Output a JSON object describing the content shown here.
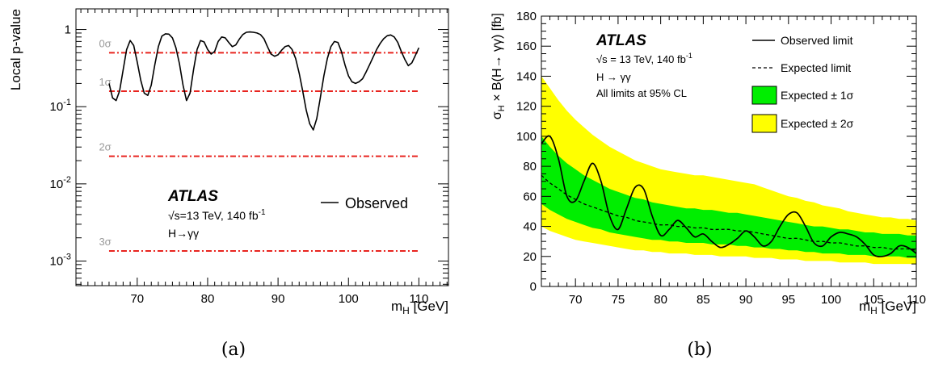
{
  "chart_data": [
    {
      "type": "line",
      "panel_label": "(a)",
      "ylabel": "Local p-value",
      "xlabel": "m",
      "xlabel_sub": "H",
      "xlabel_unit": " [GeV]",
      "xlim": [
        61.3,
        114.2
      ],
      "ylim": [
        0.00048,
        1.85
      ],
      "y_scale": "log",
      "grid": false,
      "x_ticks": [
        70,
        80,
        90,
        100,
        110
      ],
      "y_ticks": [
        {
          "value": 1,
          "base": "1",
          "exp": ""
        },
        {
          "value": 0.1,
          "base": "10",
          "exp": "-1"
        },
        {
          "value": 0.01,
          "base": "10",
          "exp": "-2"
        },
        {
          "value": 0.001,
          "base": "10",
          "exp": "-3"
        }
      ],
      "reference_lines": [
        {
          "label": "0σ",
          "value": 0.5
        },
        {
          "label": "1σ",
          "value": 0.159
        },
        {
          "label": "2σ",
          "value": 0.0228
        },
        {
          "label": "3σ",
          "value": 0.00135
        }
      ],
      "atlas_label": "ATLAS",
      "info_lines": [
        "√s=13 TeV, 140 fb",
        "H→γγ"
      ],
      "info_sup": "-1",
      "legend": {
        "placement": "middle-right",
        "entries": [
          "Observed"
        ]
      },
      "series": [
        {
          "name": "Observed",
          "x": [
            66,
            66.5,
            67,
            67.5,
            68,
            68.5,
            69,
            69.5,
            70,
            70.5,
            71,
            71.5,
            72,
            72.5,
            73,
            73.5,
            74,
            74.5,
            75,
            75.5,
            76,
            76.5,
            77,
            77.5,
            78,
            78.5,
            79,
            79.5,
            80,
            80.5,
            81,
            81.5,
            82,
            82.5,
            83,
            83.5,
            84,
            84.5,
            85,
            85.5,
            86,
            86.5,
            87,
            87.5,
            88,
            88.5,
            89,
            89.5,
            90,
            90.5,
            91,
            91.5,
            92,
            92.5,
            93,
            93.5,
            94,
            94.5,
            95,
            95.5,
            96,
            96.5,
            97,
            97.5,
            98,
            98.5,
            99,
            99.5,
            100,
            100.5,
            101,
            101.5,
            102,
            102.5,
            103,
            103.5,
            104,
            104.5,
            105,
            105.5,
            106,
            106.5,
            107,
            107.5,
            108,
            108.5,
            109,
            109.5,
            110
          ],
          "y": [
            0.2,
            0.13,
            0.12,
            0.16,
            0.3,
            0.55,
            0.72,
            0.62,
            0.38,
            0.22,
            0.15,
            0.14,
            0.19,
            0.35,
            0.6,
            0.82,
            0.88,
            0.87,
            0.78,
            0.58,
            0.36,
            0.19,
            0.12,
            0.15,
            0.3,
            0.55,
            0.72,
            0.69,
            0.55,
            0.48,
            0.52,
            0.7,
            0.8,
            0.78,
            0.68,
            0.6,
            0.63,
            0.75,
            0.86,
            0.92,
            0.93,
            0.92,
            0.9,
            0.86,
            0.76,
            0.6,
            0.48,
            0.45,
            0.47,
            0.54,
            0.6,
            0.62,
            0.55,
            0.42,
            0.27,
            0.16,
            0.09,
            0.06,
            0.05,
            0.07,
            0.13,
            0.25,
            0.42,
            0.6,
            0.7,
            0.68,
            0.52,
            0.35,
            0.25,
            0.21,
            0.2,
            0.21,
            0.23,
            0.28,
            0.35,
            0.44,
            0.55,
            0.66,
            0.76,
            0.83,
            0.85,
            0.8,
            0.68,
            0.52,
            0.41,
            0.34,
            0.37,
            0.46,
            0.58
          ]
        }
      ]
    },
    {
      "type": "line",
      "panel_label": "(b)",
      "ylabel_parts": [
        "σ",
        "H",
        " × B(H→ γγ) [fb]"
      ],
      "xlabel": "m",
      "xlabel_sub": "H",
      "xlabel_unit": " [GeV]",
      "xlim": [
        66,
        110
      ],
      "ylim": [
        0,
        180
      ],
      "y_scale": "linear",
      "grid": false,
      "x_ticks": [
        70,
        75,
        80,
        85,
        90,
        95,
        100,
        105,
        110
      ],
      "y_ticks": [
        0,
        20,
        40,
        60,
        80,
        100,
        120,
        140,
        160,
        180
      ],
      "atlas_label": "ATLAS",
      "info_lines": [
        "√s = 13 TeV, 140 fb",
        "H → γγ",
        "All limits at 95% CL"
      ],
      "info_sup": "-1",
      "legend": {
        "placement": "top-right",
        "entries": [
          "Observed limit",
          "Expected limit",
          "Expected ± 1σ",
          "Expected ± 2σ"
        ]
      },
      "colors": {
        "band_1sigma": "#00ee00",
        "band_2sigma": "#ffff00"
      },
      "x": [
        66,
        67,
        68,
        69,
        70,
        71,
        72,
        73,
        74,
        75,
        76,
        77,
        78,
        79,
        80,
        81,
        82,
        83,
        84,
        85,
        86,
        87,
        88,
        89,
        90,
        91,
        92,
        93,
        94,
        95,
        96,
        97,
        98,
        99,
        100,
        101,
        102,
        103,
        104,
        105,
        106,
        107,
        108,
        109,
        110
      ],
      "series": [
        {
          "name": "Expected + 2σ",
          "values": [
            140,
            132,
            124,
            117,
            111,
            106,
            101,
            97,
            93,
            90,
            87,
            84,
            82,
            80,
            78,
            77,
            76,
            75,
            74,
            74,
            73,
            72,
            71,
            70,
            69,
            68,
            66,
            64,
            62,
            60,
            59,
            57,
            56,
            54,
            53,
            52,
            50,
            49,
            48,
            47,
            46,
            46,
            45,
            45,
            44
          ]
        },
        {
          "name": "Expected + 1σ",
          "values": [
            100,
            93,
            87,
            82,
            78,
            74,
            71,
            68,
            65,
            63,
            61,
            59,
            58,
            56,
            55,
            54,
            53,
            52,
            52,
            51,
            51,
            50,
            49,
            49,
            48,
            47,
            46,
            45,
            44,
            43,
            42,
            41,
            40,
            40,
            39,
            38,
            38,
            37,
            36,
            36,
            35,
            35,
            35,
            34,
            34
          ]
        },
        {
          "name": "Expected − 1σ",
          "values": [
            55,
            51,
            48,
            45,
            43,
            41,
            39,
            38,
            36,
            35,
            34,
            33,
            32,
            31,
            31,
            30,
            30,
            29,
            29,
            29,
            28,
            28,
            28,
            27,
            27,
            26,
            26,
            25,
            25,
            24,
            24,
            23,
            23,
            22,
            22,
            22,
            21,
            21,
            21,
            20,
            20,
            20,
            20,
            19,
            19
          ]
        },
        {
          "name": "Expected − 2σ",
          "values": [
            40,
            37,
            35,
            33,
            31,
            30,
            29,
            28,
            27,
            26,
            25,
            24,
            24,
            23,
            23,
            22,
            22,
            22,
            21,
            21,
            21,
            20,
            20,
            20,
            20,
            19,
            19,
            19,
            18,
            18,
            18,
            17,
            17,
            17,
            17,
            16,
            16,
            16,
            16,
            15,
            15,
            15,
            15,
            15,
            15
          ]
        },
        {
          "name": "Expected limit",
          "values": [
            74,
            69,
            65,
            61,
            58,
            55,
            53,
            51,
            49,
            47,
            46,
            44,
            43,
            42,
            41,
            41,
            40,
            40,
            39,
            39,
            38,
            38,
            38,
            37,
            37,
            36,
            35,
            34,
            33,
            32,
            32,
            31,
            30,
            30,
            29,
            29,
            28,
            27,
            27,
            26,
            26,
            25,
            25,
            25,
            24
          ]
        },
        {
          "name": "Observed limit",
          "values": [
            95,
            100,
            85,
            60,
            57,
            70,
            82,
            70,
            47,
            38,
            52,
            66,
            65,
            47,
            34,
            38,
            44,
            39,
            33,
            35,
            30,
            26,
            28,
            32,
            37,
            33,
            27,
            30,
            40,
            48,
            49,
            40,
            29,
            27,
            33,
            36,
            35,
            33,
            28,
            21,
            20,
            22,
            27,
            26,
            22
          ]
        }
      ]
    }
  ],
  "captions": [
    "(a)",
    "(b)"
  ]
}
